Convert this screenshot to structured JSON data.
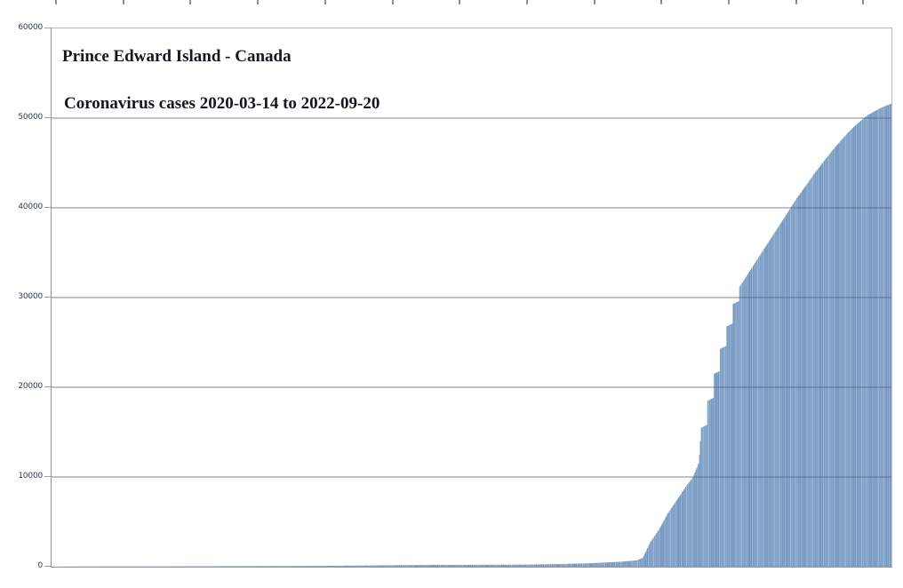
{
  "page": {
    "background": "#ffffff"
  },
  "top_ruler": {
    "tick_count": 13
  },
  "chart_data": {
    "type": "bar",
    "title": "Prince Edward Island - Canada",
    "subtitle": "Coronavirus cases 2020-03-14 to 2022-09-20",
    "xlabel": "",
    "ylabel": "",
    "x_start_date": "2020-03-14",
    "x_end_date": "2022-09-20",
    "total_days": 921,
    "ylim": [
      0,
      60000
    ],
    "ytick_interval": 10000,
    "ytick_labels": [
      "60000",
      "50000",
      "40000",
      "30000",
      "20000",
      "10000",
      "0"
    ],
    "grid": true,
    "legend": "none",
    "x_tick_labels_visible": false,
    "series_name": "Cumulative coronavirus cases",
    "series_keypoints": [
      [
        0,
        1
      ],
      [
        30,
        27
      ],
      [
        100,
        33
      ],
      [
        200,
        57
      ],
      [
        292,
        89
      ],
      [
        365,
        150
      ],
      [
        420,
        200
      ],
      [
        470,
        208
      ],
      [
        520,
        230
      ],
      [
        560,
        300
      ],
      [
        590,
        380
      ],
      [
        610,
        480
      ],
      [
        625,
        560
      ],
      [
        641,
        700
      ],
      [
        648,
        1000
      ],
      [
        656,
        2700
      ],
      [
        666,
        4200
      ],
      [
        675,
        5900
      ],
      [
        685,
        7400
      ],
      [
        695,
        8900
      ],
      [
        703,
        10000
      ],
      [
        709,
        11500
      ],
      [
        710,
        12500
      ],
      [
        712,
        15500
      ],
      [
        718,
        15800
      ],
      [
        719,
        18500
      ],
      [
        725,
        18800
      ],
      [
        726,
        21500
      ],
      [
        732,
        21800
      ],
      [
        733,
        24300
      ],
      [
        739,
        24600
      ],
      [
        740,
        26800
      ],
      [
        746,
        27100
      ],
      [
        747,
        29300
      ],
      [
        753,
        29600
      ],
      [
        754,
        31200
      ],
      [
        761,
        32300
      ],
      [
        768,
        33400
      ],
      [
        775,
        34500
      ],
      [
        782,
        35600
      ],
      [
        789,
        36700
      ],
      [
        796,
        37800
      ],
      [
        803,
        38900
      ],
      [
        810,
        40000
      ],
      [
        817,
        41100
      ],
      [
        824,
        42100
      ],
      [
        831,
        43100
      ],
      [
        838,
        44100
      ],
      [
        845,
        45000
      ],
      [
        852,
        45900
      ],
      [
        859,
        46800
      ],
      [
        866,
        47600
      ],
      [
        873,
        48400
      ],
      [
        880,
        49100
      ],
      [
        887,
        49700
      ],
      [
        894,
        50300
      ],
      [
        901,
        50700
      ],
      [
        908,
        51100
      ],
      [
        915,
        51400
      ],
      [
        920,
        51600
      ]
    ],
    "interpolation": "linear-daily",
    "final_value": 51600,
    "colors": {
      "bar_light": "#8aa9cd",
      "bar_dark": "#6b90bb",
      "bar_highlight": "#a3bcd8",
      "gridline_over_bars": "rgba(58,76,98,0.55)",
      "gridline": "#c6c9cc",
      "axis_line": "#8f9296",
      "tick": "#9aa0a6",
      "title_text": "#16161f",
      "y_label_text": "#2e3b4a"
    }
  }
}
